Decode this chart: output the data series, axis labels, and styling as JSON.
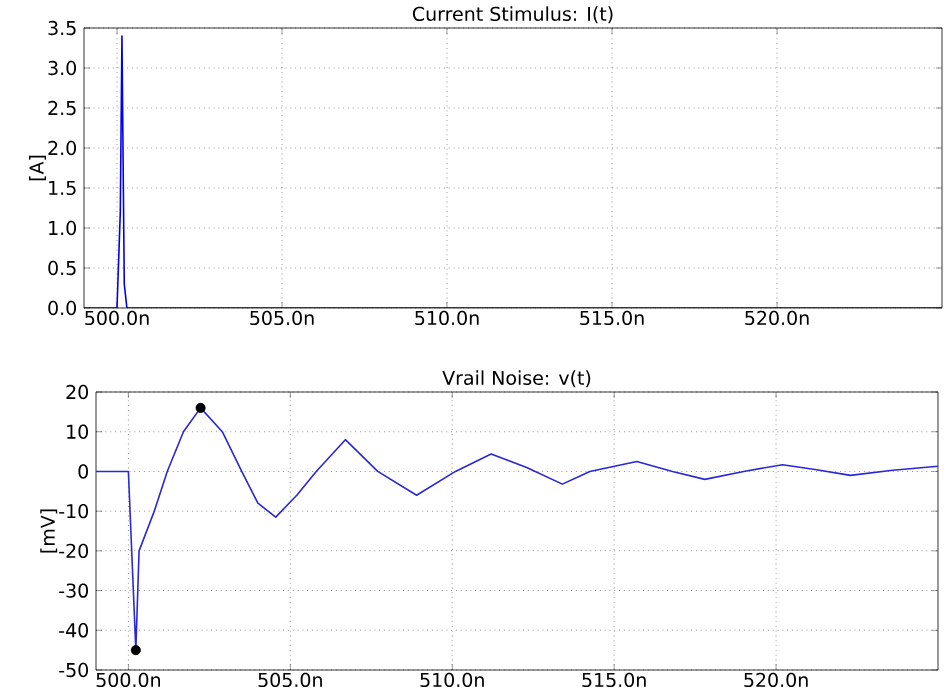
{
  "chart_data": [
    {
      "type": "line",
      "title": "Current Stimulus: I(t)",
      "ylabel": "[A]",
      "xlim": [
        499,
        525
      ],
      "ylim": [
        0,
        3.5
      ],
      "xticks": [
        {
          "value": 500,
          "label": "500.0n"
        },
        {
          "value": 505,
          "label": "505.0n"
        },
        {
          "value": 510,
          "label": "510.0n"
        },
        {
          "value": 515,
          "label": "515.0n"
        },
        {
          "value": 520,
          "label": "520.0n"
        }
      ],
      "yticks": [
        {
          "value": 0,
          "label": "0.0"
        },
        {
          "value": 0.5,
          "label": "0.5"
        },
        {
          "value": 1,
          "label": "1.0"
        },
        {
          "value": 1.5,
          "label": "1.5"
        },
        {
          "value": 2,
          "label": "2.0"
        },
        {
          "value": 2.5,
          "label": "2.5"
        },
        {
          "value": 3,
          "label": "3.0"
        },
        {
          "value": 3.5,
          "label": "3.5"
        }
      ],
      "grid": true,
      "series": [
        {
          "color": "#0000ee",
          "x": [
            499,
            500.0,
            500.05,
            500.1,
            500.15,
            500.22,
            500.3,
            525
          ],
          "values": [
            0,
            0,
            0.6,
            1.2,
            3.4,
            0.3,
            0,
            0
          ]
        }
      ]
    },
    {
      "type": "line",
      "title": "Vrail Noise: v(t)",
      "ylabel": "[mV]",
      "xlim": [
        499,
        525
      ],
      "ylim": [
        -50,
        20
      ],
      "xticks": [
        {
          "value": 500,
          "label": "500.0n"
        },
        {
          "value": 505,
          "label": "505.0n"
        },
        {
          "value": 510,
          "label": "510.0n"
        },
        {
          "value": 515,
          "label": "515.0n"
        },
        {
          "value": 520,
          "label": "520.0n"
        }
      ],
      "yticks": [
        -50,
        -40,
        -30,
        -20,
        -10,
        0,
        10,
        20
      ],
      "grid": true,
      "series": [
        {
          "color": "#2828d8",
          "x": [
            499,
            500.0,
            500.23,
            500.33,
            500.8,
            501.2,
            501.7,
            502.23,
            502.9,
            503.5,
            504.0,
            504.55,
            505.2,
            505.8,
            506.7,
            507.7,
            508.9,
            510.1,
            511.2,
            512.3,
            513.4,
            514.25,
            515.7,
            516.8,
            517.8,
            519.0,
            520.2,
            521.2,
            522.3,
            523.6,
            525
          ],
          "values": [
            0,
            0,
            -45,
            -20,
            -10,
            0,
            10,
            16,
            10,
            0,
            -8,
            -11.5,
            -6,
            0,
            8,
            0,
            -6,
            0,
            4.4,
            1,
            -3.2,
            0,
            2.5,
            0,
            -2,
            0,
            1.7,
            0.5,
            -1,
            0.3,
            1.3
          ]
        },
        {
          "type": "scatter",
          "color": "#000000",
          "marker": "circle",
          "x": [
            500.23,
            502.23
          ],
          "values": [
            -45,
            16
          ]
        }
      ]
    }
  ]
}
